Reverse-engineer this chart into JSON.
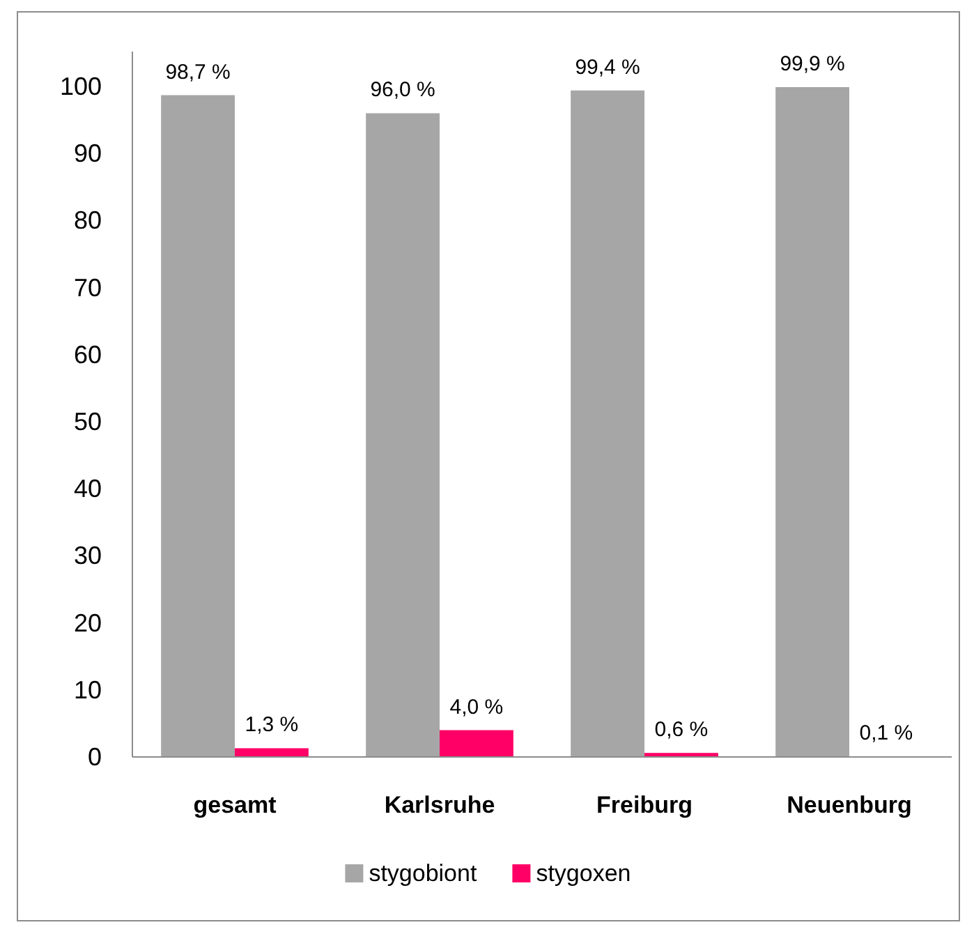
{
  "chart_data": {
    "type": "bar",
    "categories": [
      "gesamt",
      "Karlsruhe",
      "Freiburg",
      "Neuenburg"
    ],
    "series": [
      {
        "name": "stygobiont",
        "color": "#a6a6a6",
        "values": [
          98.7,
          96.0,
          99.4,
          99.9
        ],
        "value_labels": [
          "98,7 %",
          "96,0 %",
          "99,4 %",
          "99,9 %"
        ]
      },
      {
        "name": "stygoxen",
        "color": "#ff0066",
        "values": [
          1.3,
          4.0,
          0.6,
          0.1
        ],
        "value_labels": [
          "1,3 %",
          "4,0 %",
          "0,6 %",
          "0,1 %"
        ]
      }
    ],
    "ylim": [
      0,
      100
    ],
    "yticks": [
      0,
      10,
      20,
      30,
      40,
      50,
      60,
      70,
      80,
      90,
      100
    ],
    "grid": false,
    "legend": "bottom"
  }
}
